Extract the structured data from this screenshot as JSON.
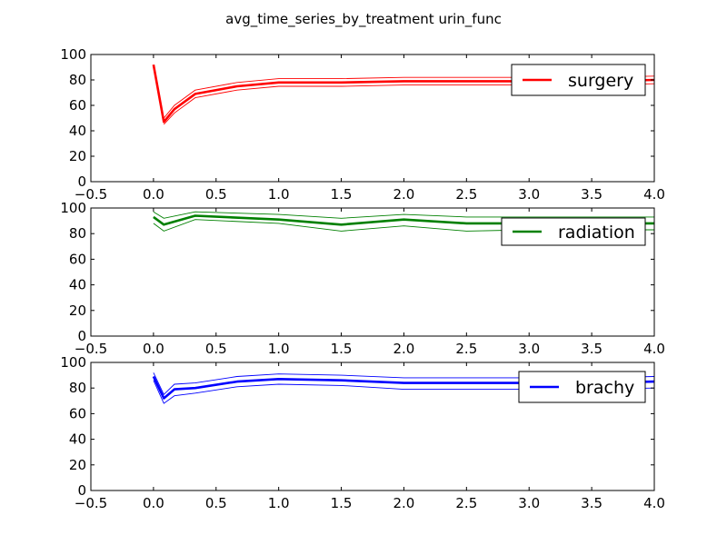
{
  "figure": {
    "title": "avg_time_series_by_treatment urin_func"
  },
  "chart_data": [
    {
      "type": "line",
      "xlim": [
        -0.5,
        4.0
      ],
      "ylim": [
        0,
        100
      ],
      "xticks": [
        "−0.5",
        "0.0",
        "0.5",
        "1.0",
        "1.5",
        "2.0",
        "2.5",
        "3.0",
        "3.5",
        "4.0"
      ],
      "yticks": [
        "0",
        "20",
        "40",
        "60",
        "80",
        "100"
      ],
      "legend": {
        "position": "top-right"
      },
      "color": "#ff0000",
      "series": [
        {
          "name": "surgery",
          "x": [
            0.0,
            0.083,
            0.167,
            0.333,
            0.667,
            1.0,
            1.5,
            2.0,
            2.5,
            3.0,
            3.5,
            4.0
          ],
          "y": [
            92,
            47,
            57,
            69,
            75,
            78,
            78,
            79,
            79,
            79,
            79,
            80
          ],
          "lower": [
            null,
            45,
            54,
            66,
            72,
            75,
            75,
            76,
            76,
            76,
            76,
            77
          ],
          "upper": [
            null,
            50,
            60,
            72,
            78,
            81,
            81,
            82,
            82,
            82,
            82,
            83
          ]
        }
      ]
    },
    {
      "type": "line",
      "xlim": [
        -0.5,
        4.0
      ],
      "ylim": [
        0,
        100
      ],
      "xticks": [
        "−0.5",
        "0.0",
        "0.5",
        "1.0",
        "1.5",
        "2.0",
        "2.5",
        "3.0",
        "3.5",
        "4.0"
      ],
      "yticks": [
        "0",
        "20",
        "40",
        "60",
        "80",
        "100"
      ],
      "legend": {
        "position": "top-right"
      },
      "color": "#008000",
      "series": [
        {
          "name": "radiation",
          "x": [
            0.0,
            0.083,
            0.333,
            1.0,
            1.5,
            2.0,
            2.5,
            3.0,
            3.5,
            4.0
          ],
          "y": [
            93,
            87,
            94,
            91,
            87,
            91,
            88,
            88,
            88,
            88
          ],
          "lower": [
            88,
            82,
            91,
            88,
            82,
            86,
            82,
            83,
            83,
            83
          ],
          "upper": [
            97,
            92,
            97,
            95,
            92,
            95,
            93,
            93,
            93,
            93
          ]
        }
      ]
    },
    {
      "type": "line",
      "xlim": [
        -0.5,
        4.0
      ],
      "ylim": [
        0,
        100
      ],
      "xticks": [
        "−0.5",
        "0.0",
        "0.5",
        "1.0",
        "1.5",
        "2.0",
        "2.5",
        "3.0",
        "3.5",
        "4.0"
      ],
      "yticks": [
        "0",
        "20",
        "40",
        "60",
        "80",
        "100"
      ],
      "legend": {
        "position": "top-right"
      },
      "color": "#0000ff",
      "series": [
        {
          "name": "brachy",
          "x": [
            0.0,
            0.083,
            0.167,
            0.333,
            0.667,
            1.0,
            1.5,
            2.0,
            2.5,
            3.0,
            3.5,
            4.0
          ],
          "y": [
            89,
            72,
            79,
            80,
            85,
            87,
            86,
            84,
            84,
            84,
            84,
            85
          ],
          "lower": [
            86,
            68,
            74,
            76,
            81,
            83,
            82,
            79,
            79,
            79,
            79,
            80
          ],
          "upper": [
            92,
            75,
            83,
            84,
            89,
            91,
            90,
            88,
            88,
            88,
            88,
            89
          ]
        }
      ]
    }
  ]
}
